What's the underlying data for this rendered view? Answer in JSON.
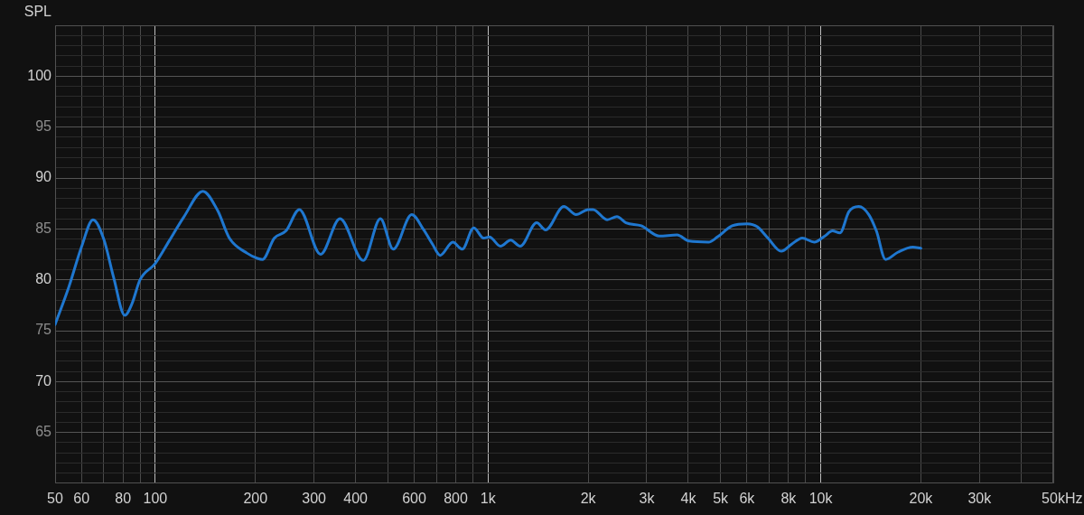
{
  "chart_data": {
    "type": "line",
    "ylabel": "SPL",
    "xlabel": "Hz",
    "log": "x",
    "grid": true,
    "legend": false,
    "marker": "none",
    "line_style": "solid",
    "xlim": [
      50,
      50000
    ],
    "xticks": [
      50,
      60,
      {
        "value": 70,
        "label": null
      },
      80,
      {
        "value": 90,
        "label": null
      },
      100,
      200,
      300,
      400,
      {
        "value": 500,
        "label": null
      },
      600,
      {
        "value": 700,
        "label": null
      },
      800,
      {
        "value": 900,
        "label": null
      },
      {
        "value": 1000,
        "label": "1k"
      },
      {
        "value": 2000,
        "label": "2k"
      },
      {
        "value": 3000,
        "label": "3k"
      },
      {
        "value": 4000,
        "label": "4k"
      },
      {
        "value": 5000,
        "label": "5k"
      },
      {
        "value": 6000,
        "label": "6k"
      },
      {
        "value": 7000,
        "label": null
      },
      {
        "value": 8000,
        "label": "8k"
      },
      {
        "value": 9000,
        "label": null
      },
      {
        "value": 10000,
        "label": "10k"
      },
      {
        "value": 20000,
        "label": "20k"
      },
      {
        "value": 30000,
        "label": "30k"
      },
      {
        "value": 40000,
        "label": null
      },
      {
        "value": 50000,
        "label": "50k"
      }
    ],
    "ylim": [
      60,
      105
    ],
    "yticks": [
      {
        "value": 61,
        "label": null
      },
      {
        "value": 62,
        "label": null
      },
      {
        "value": 63,
        "label": null
      },
      {
        "value": 64,
        "label": null
      },
      65,
      {
        "value": 66,
        "label": null
      },
      {
        "value": 67,
        "label": null
      },
      {
        "value": 68,
        "label": null
      },
      {
        "value": 69,
        "label": null
      },
      70,
      {
        "value": 71,
        "label": null
      },
      {
        "value": 72,
        "label": null
      },
      {
        "value": 73,
        "label": null
      },
      {
        "value": 74,
        "label": null
      },
      75,
      {
        "value": 76,
        "label": null
      },
      {
        "value": 77,
        "label": null
      },
      {
        "value": 78,
        "label": null
      },
      {
        "value": 79,
        "label": null
      },
      80,
      {
        "value": 81,
        "label": null
      },
      {
        "value": 82,
        "label": null
      },
      {
        "value": 83,
        "label": null
      },
      {
        "value": 84,
        "label": null
      },
      85,
      {
        "value": 86,
        "label": null
      },
      {
        "value": 87,
        "label": null
      },
      {
        "value": 88,
        "label": null
      },
      {
        "value": 89,
        "label": null
      },
      90,
      {
        "value": 91,
        "label": null
      },
      {
        "value": 92,
        "label": null
      },
      {
        "value": 93,
        "label": null
      },
      {
        "value": 94,
        "label": null
      },
      95,
      {
        "value": 96,
        "label": null
      },
      {
        "value": 97,
        "label": null
      },
      {
        "value": 98,
        "label": null
      },
      {
        "value": 99,
        "label": null
      },
      100,
      {
        "value": 101,
        "label": null
      },
      {
        "value": 102,
        "label": null
      },
      {
        "value": 103,
        "label": null
      },
      {
        "value": 104,
        "label": null
      }
    ],
    "x": [
      50,
      55,
      60,
      65,
      70,
      75,
      81,
      85,
      90,
      100,
      110,
      122,
      139,
      154,
      167,
      189,
      203,
      210,
      228,
      247,
      271,
      314,
      359,
      422,
      475,
      519,
      590,
      641,
      681,
      718,
      784,
      837,
      906,
      970,
      1010,
      1090,
      1170,
      1250,
      1400,
      1490,
      1690,
      1840,
      2000,
      2070,
      2280,
      2440,
      2600,
      2890,
      3270,
      3700,
      4020,
      4600,
      4890,
      5420,
      6010,
      6450,
      6940,
      7610,
      8180,
      8800,
      9560,
      10290,
      10840,
      11420,
      12160,
      13010,
      13950,
      14700,
      15660,
      17040,
      18920,
      20000
    ],
    "series": [
      {
        "color": "#1f77cf",
        "values": [
          75.6,
          79.3,
          83.2,
          85.9,
          84.0,
          80.2,
          76.5,
          77.6,
          80.0,
          81.6,
          83.8,
          86.2,
          88.7,
          86.8,
          84.1,
          82.6,
          82.1,
          82.0,
          84.1,
          84.8,
          86.9,
          82.5,
          86.0,
          81.9,
          86.0,
          83.0,
          86.4,
          84.9,
          83.5,
          82.4,
          83.7,
          83.0,
          85.1,
          84.1,
          84.2,
          83.3,
          83.9,
          83.3,
          85.6,
          84.9,
          87.2,
          86.4,
          86.9,
          86.9,
          85.9,
          86.2,
          85.6,
          85.3,
          84.3,
          84.4,
          83.8,
          83.7,
          84.2,
          85.3,
          85.5,
          85.2,
          84.1,
          82.8,
          83.5,
          84.1,
          83.7,
          84.3,
          84.8,
          84.6,
          86.7,
          87.2,
          86.4,
          84.8,
          82.0,
          82.7,
          83.2,
          83.1
        ]
      }
    ]
  }
}
